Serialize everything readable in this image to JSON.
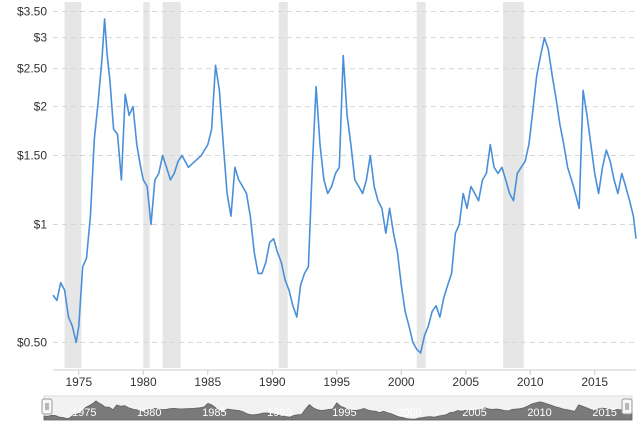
{
  "chart_data": {
    "type": "line",
    "title": "",
    "xlabel": "",
    "ylabel": "",
    "y_scale": "log",
    "ylim": [
      0.43,
      3.7
    ],
    "xlim": [
      1973.0,
      2018.2
    ],
    "y_ticks": [
      {
        "value": 0.5,
        "label": "$0.50"
      },
      {
        "value": 1.0,
        "label": "$1"
      },
      {
        "value": 1.5,
        "label": "$1.50"
      },
      {
        "value": 2.0,
        "label": "$2"
      },
      {
        "value": 2.5,
        "label": "$2.50"
      },
      {
        "value": 3.0,
        "label": "$3"
      },
      {
        "value": 3.5,
        "label": "$3.50"
      }
    ],
    "x_ticks": [
      {
        "value": 1975,
        "label": "1975"
      },
      {
        "value": 1980,
        "label": "1980"
      },
      {
        "value": 1985,
        "label": "1985"
      },
      {
        "value": 1990,
        "label": "1990"
      },
      {
        "value": 1995,
        "label": "1995"
      },
      {
        "value": 2000,
        "label": "2000"
      },
      {
        "value": 2005,
        "label": "2005"
      },
      {
        "value": 2010,
        "label": "2010"
      },
      {
        "value": 2015,
        "label": "2015"
      }
    ],
    "grid": "horizontal dashed",
    "recessions": [
      [
        1973.9,
        1975.2
      ],
      [
        1980.0,
        1980.5
      ],
      [
        1981.5,
        1982.9
      ],
      [
        1990.5,
        1991.2
      ],
      [
        2001.2,
        2001.9
      ],
      [
        2007.9,
        2009.5
      ]
    ],
    "series": [
      {
        "color": "#4a90d9",
        "x": [
          1973.0,
          1973.3,
          1973.6,
          1973.9,
          1974.2,
          1974.5,
          1974.8,
          1975.0,
          1975.3,
          1975.6,
          1975.9,
          1976.2,
          1976.5,
          1976.8,
          1977.0,
          1977.2,
          1977.4,
          1977.7,
          1978.0,
          1978.3,
          1978.6,
          1978.9,
          1979.2,
          1979.5,
          1979.8,
          1980.0,
          1980.3,
          1980.6,
          1980.9,
          1981.2,
          1981.5,
          1981.8,
          1982.1,
          1982.4,
          1982.7,
          1983.0,
          1983.5,
          1984.0,
          1984.5,
          1985.0,
          1985.3,
          1985.6,
          1985.9,
          1986.2,
          1986.5,
          1986.8,
          1987.1,
          1987.4,
          1987.7,
          1988.0,
          1988.3,
          1988.6,
          1988.9,
          1989.2,
          1989.5,
          1989.8,
          1990.1,
          1990.4,
          1990.7,
          1991.0,
          1991.3,
          1991.6,
          1991.9,
          1992.2,
          1992.5,
          1992.8,
          1993.1,
          1993.4,
          1993.7,
          1994.0,
          1994.3,
          1994.6,
          1994.9,
          1995.2,
          1995.5,
          1995.8,
          1996.1,
          1996.4,
          1996.7,
          1997.0,
          1997.3,
          1997.6,
          1997.9,
          1998.2,
          1998.5,
          1998.8,
          1999.1,
          1999.4,
          1999.7,
          2000.0,
          2000.3,
          2000.6,
          2000.9,
          2001.2,
          2001.5,
          2001.8,
          2002.1,
          2002.4,
          2002.7,
          2003.0,
          2003.3,
          2003.6,
          2003.9,
          2004.2,
          2004.5,
          2004.8,
          2005.1,
          2005.4,
          2005.7,
          2006.0,
          2006.3,
          2006.6,
          2006.9,
          2007.2,
          2007.5,
          2007.8,
          2008.1,
          2008.4,
          2008.7,
          2009.0,
          2009.3,
          2009.6,
          2009.9,
          2010.2,
          2010.5,
          2010.8,
          2011.1,
          2011.4,
          2011.7,
          2012.0,
          2012.3,
          2012.6,
          2012.9,
          2013.2,
          2013.5,
          2013.8,
          2014.1,
          2014.4,
          2014.7,
          2015.0,
          2015.3,
          2015.6,
          2015.9,
          2016.2,
          2016.5,
          2016.8,
          2017.1,
          2017.4,
          2017.7,
          2018.0,
          2018.2
        ],
        "y": [
          0.66,
          0.64,
          0.71,
          0.68,
          0.58,
          0.55,
          0.5,
          0.55,
          0.78,
          0.82,
          1.05,
          1.65,
          2.05,
          2.65,
          3.35,
          2.7,
          2.35,
          1.75,
          1.7,
          1.3,
          2.15,
          1.9,
          2.0,
          1.6,
          1.4,
          1.3,
          1.25,
          1.0,
          1.3,
          1.35,
          1.5,
          1.4,
          1.3,
          1.35,
          1.45,
          1.5,
          1.4,
          1.45,
          1.5,
          1.6,
          1.75,
          2.55,
          2.2,
          1.6,
          1.2,
          1.05,
          1.4,
          1.3,
          1.25,
          1.2,
          1.05,
          0.85,
          0.75,
          0.75,
          0.8,
          0.9,
          0.92,
          0.85,
          0.8,
          0.72,
          0.68,
          0.62,
          0.58,
          0.7,
          0.75,
          0.78,
          1.4,
          2.25,
          1.6,
          1.3,
          1.2,
          1.25,
          1.35,
          1.4,
          2.7,
          1.9,
          1.6,
          1.3,
          1.25,
          1.2,
          1.3,
          1.5,
          1.25,
          1.15,
          1.1,
          0.95,
          1.1,
          0.95,
          0.85,
          0.7,
          0.6,
          0.55,
          0.5,
          0.48,
          0.47,
          0.52,
          0.55,
          0.6,
          0.62,
          0.58,
          0.65,
          0.7,
          0.75,
          0.95,
          1.0,
          1.2,
          1.1,
          1.25,
          1.2,
          1.15,
          1.3,
          1.35,
          1.6,
          1.4,
          1.35,
          1.4,
          1.3,
          1.2,
          1.15,
          1.35,
          1.4,
          1.45,
          1.6,
          1.95,
          2.4,
          2.7,
          3.0,
          2.8,
          2.4,
          2.1,
          1.8,
          1.6,
          1.4,
          1.3,
          1.2,
          1.1,
          2.2,
          1.9,
          1.6,
          1.35,
          1.2,
          1.4,
          1.55,
          1.45,
          1.3,
          1.2,
          1.35,
          1.25,
          1.15,
          1.05,
          0.92
        ]
      }
    ]
  }
}
